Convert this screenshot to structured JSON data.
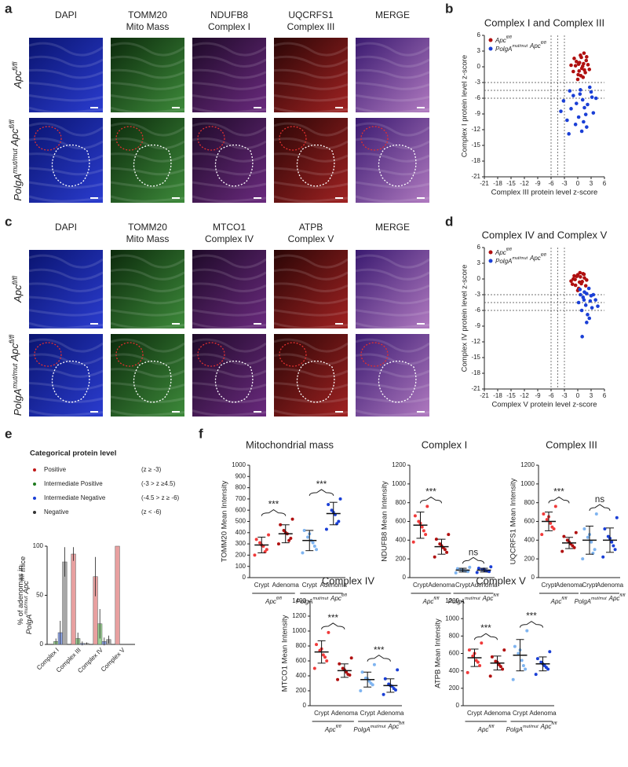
{
  "panel_a": {
    "letter": "a",
    "columns": [
      [
        "DAPI"
      ],
      [
        "TOMM20",
        "Mito Mass"
      ],
      [
        "NDUFB8",
        "Complex I"
      ],
      [
        "UQCRFS1",
        "Complex III"
      ],
      [
        "MERGE"
      ]
    ],
    "rows": [
      [
        {
          "text": "Apc",
          "sup": "fl/fl"
        }
      ],
      [
        {
          "text": "PolgA",
          "sup": "mut/mut"
        },
        {
          "text": "Apc",
          "sup": "fl/fl"
        }
      ]
    ]
  },
  "panel_c": {
    "letter": "c",
    "columns": [
      [
        "DAPI"
      ],
      [
        "TOMM20",
        "Mito Mass"
      ],
      [
        "MTCO1",
        "Complex IV"
      ],
      [
        "ATPB",
        "Complex V"
      ],
      [
        "MERGE"
      ]
    ],
    "rows": [
      [
        {
          "text": "Apc",
          "sup": "fl/fl"
        }
      ],
      [
        {
          "text": "PolgA",
          "sup": "mut/mut"
        },
        {
          "text": "Apc",
          "sup": "fl/fl"
        }
      ]
    ]
  },
  "panel_f": {
    "letter": "f"
  },
  "chart_data": [
    {
      "type": "scatter",
      "letter": "b",
      "title": "Complex I and Complex III",
      "xlabel": "Complex III protein level z-score",
      "ylabel": "Complex I protein level z-score",
      "xlim": [
        -21,
        6
      ],
      "xticks": [
        -21,
        -18,
        -15,
        -12,
        -9,
        -6,
        -3,
        0,
        3,
        6
      ],
      "ylim": [
        -21,
        6
      ],
      "yticks": [
        -21,
        -18,
        -15,
        -12,
        -9,
        -6,
        -3,
        0,
        3,
        6
      ],
      "thresholds": [
        -3,
        -4.5,
        -6
      ],
      "series": [
        {
          "name": [
            {
              "text": "Apc",
              "sup": "fl/fl"
            }
          ],
          "color": "#b01010",
          "x": [
            0.2,
            0.8,
            1.5,
            -0.5,
            0.1,
            1.9,
            2.3,
            -1,
            0.6,
            1.2,
            -0.3,
            0.9,
            1.7,
            0.4,
            -0.8,
            2.6,
            1.1,
            0.0,
            1.4,
            -1.5,
            0.7,
            2.0,
            0.3,
            1.3
          ],
          "values": [
            0.5,
            1.8,
            -0.6,
            0.2,
            -1.5,
            1.2,
            0.4,
            -0.9,
            2.2,
            -2.0,
            1.0,
            -0.3,
            -1.1,
            0.8,
            1.6,
            -0.5,
            0.1,
            -2.4,
            2.6,
            0.3,
            -1.7,
            1.9,
            -0.8,
            0.6
          ]
        },
        {
          "name": [
            {
              "text": "PolgA",
              "sup": "mut/mut"
            },
            {
              "text": "Apc",
              "sup": "fl/fl"
            }
          ],
          "color": "#1a3fd6",
          "x": [
            -3.2,
            -1.5,
            0.5,
            1.8,
            3.0,
            -0.5,
            2.2,
            -2.4,
            4.1,
            0.9,
            -1.0,
            1.5,
            2.7,
            -3.8,
            0.2,
            3.5,
            -1.8,
            1.1,
            2.0,
            -0.3,
            0.6,
            -2.0,
            1.3,
            3.2
          ],
          "values": [
            -6.5,
            -8.0,
            -5.2,
            -9.1,
            -4.8,
            -11.0,
            -7.2,
            -10.2,
            -6.0,
            -12.3,
            -5.5,
            -7.8,
            -3.9,
            -8.5,
            -9.6,
            -8.8,
            -4.6,
            -6.3,
            -11.5,
            -7.0,
            -4.4,
            -12.8,
            -10.5,
            -5.8
          ]
        }
      ]
    },
    {
      "type": "scatter",
      "letter": "d",
      "title": "Complex IV and Complex V",
      "xlabel": "Complex V protein level z-score",
      "ylabel": "Complex IV protein level z-score",
      "xlim": [
        -21,
        6
      ],
      "xticks": [
        -21,
        -18,
        -15,
        -12,
        -9,
        -6,
        -3,
        0,
        3,
        6
      ],
      "ylim": [
        -21,
        6
      ],
      "yticks": [
        -21,
        -18,
        -15,
        -12,
        -9,
        -6,
        -3,
        0,
        3,
        6
      ],
      "thresholds": [
        -3,
        -4.5,
        -6
      ],
      "series": [
        {
          "name": [
            {
              "text": "Apc",
              "sup": "fl/fl"
            }
          ],
          "color": "#b01010",
          "x": [
            -1.0,
            0.0,
            1.0,
            -0.5,
            0.5,
            1.5,
            -1.5,
            0.2,
            0.8,
            -0.2,
            1.2,
            2.0,
            -0.8,
            0.4,
            1.8,
            -1.2,
            0.6,
            0.0,
            1.4,
            -0.6
          ],
          "values": [
            0.0,
            0.8,
            -0.5,
            -1.2,
            1.2,
            0.2,
            -0.4,
            -1.8,
            -0.9,
            0.5,
            1.0,
            -0.2,
            0.6,
            -0.6,
            -1.3,
            -1.0,
            0.4,
            -2.2,
            0.9,
            -0.1
          ]
        },
        {
          "name": [
            {
              "text": "PolgA",
              "sup": "mut/mut"
            },
            {
              "text": "Apc",
              "sup": "fl/fl"
            }
          ],
          "color": "#1a3fd6",
          "x": [
            0.5,
            1.2,
            2.0,
            2.8,
            3.5,
            1.8,
            0.9,
            2.5,
            3.2,
            4.0,
            1.5,
            2.2,
            0.2,
            3.0,
            1.0,
            2.6,
            1.4,
            4.5,
            0.6,
            2.0
          ],
          "values": [
            -2.0,
            -3.5,
            -2.8,
            -4.2,
            -3.0,
            -5.0,
            -6.0,
            -1.8,
            -5.5,
            -4.0,
            -2.5,
            -6.8,
            -4.5,
            -3.2,
            -11.0,
            -7.5,
            -4.0,
            -5.2,
            -3.0,
            -8.3
          ]
        }
      ]
    },
    {
      "type": "bar",
      "letter": "e",
      "legend_title": "Categorical protein level",
      "ylabel": [
        [
          {
            "text": "% of adenomas in"
          }
        ],
        [
          {
            "text": "PolgA",
            "sup": "mut/mut"
          },
          {
            "text": "Apc",
            "sup": "fl/fl"
          },
          {
            "text": "mice"
          }
        ]
      ],
      "categories": [
        "Complex I",
        "Complex III",
        "Complex IV",
        "Complex V"
      ],
      "ylim": [
        0,
        100
      ],
      "yticks": [
        0,
        50,
        100
      ],
      "series": [
        {
          "name": "Positive",
          "condition": "(z ≥ -3)",
          "color": "#e8a0a0",
          "marker": "#c01818",
          "values": [
            0,
            92,
            69,
            100
          ],
          "errors": [
            0,
            7,
            20,
            0
          ]
        },
        {
          "name": "Intermediate Positive",
          "condition": "(-3 > z ≥4.5)",
          "color": "#9ccf94",
          "marker": "#1e7a1e",
          "values": [
            3,
            6,
            21,
            0
          ],
          "errors": [
            3,
            6,
            15,
            0
          ]
        },
        {
          "name": "Intermediate Negative",
          "condition": "(-4.5 > z ≥ -6)",
          "color": "#8fa6e8",
          "marker": "#1a3fd6",
          "values": [
            12,
            1,
            3,
            0
          ],
          "errors": [
            12,
            2,
            4,
            0
          ]
        },
        {
          "name": "Negative",
          "condition": "(z < -6)",
          "color": "#a8a8a8",
          "marker": "#333333",
          "values": [
            84,
            1,
            5,
            0
          ],
          "errors": [
            15,
            1,
            4,
            0
          ]
        }
      ]
    },
    {
      "type": "dot",
      "title": "Mitochondrial mass",
      "ylabel": "TOMM20 Mean Intensity",
      "ylim": [
        0,
        1000
      ],
      "yticks": [
        0,
        100,
        200,
        300,
        400,
        500,
        600,
        700,
        800,
        900,
        1000
      ],
      "categories": [
        "Crypt",
        "Adenoma",
        "Crypt",
        "Adenoma"
      ],
      "colors": [
        "#f03a3a",
        "#b01010",
        "#7fb4f0",
        "#1a3fd6"
      ],
      "groups": [
        [
          {
            "text": "Apc",
            "sup": "fl/fl"
          }
        ],
        [
          {
            "text": "PolgA",
            "sup": "mut/mut"
          },
          {
            "text": "Apc",
            "sup": "fl/fl"
          }
        ]
      ],
      "values": [
        290,
        390,
        330,
        570
      ],
      "errors": [
        70,
        80,
        90,
        100
      ],
      "significance": [
        "***",
        "***"
      ],
      "points": [
        [
          200,
          250,
          280,
          310,
          340,
          380,
          230,
          290
        ],
        [
          300,
          350,
          390,
          420,
          470,
          520,
          330,
          400
        ],
        [
          220,
          280,
          330,
          360,
          420,
          250,
          310,
          390
        ],
        [
          430,
          500,
          560,
          600,
          650,
          700,
          480,
          580
        ]
      ]
    },
    {
      "type": "dot",
      "title": "Complex I",
      "ylabel": "NDUFB8 Mean Intensity",
      "ylim": [
        0,
        1200
      ],
      "yticks": [
        0,
        200,
        400,
        600,
        800,
        1000,
        1200
      ],
      "categories": [
        "Crypt",
        "Adenoma",
        "Crypt",
        "Adenoma"
      ],
      "colors": [
        "#f03a3a",
        "#b01010",
        "#7fb4f0",
        "#1a3fd6"
      ],
      "groups": [
        [
          {
            "text": "Apc",
            "sup": "fl/fl"
          }
        ],
        [
          {
            "text": "PolgA",
            "sup": "mut/mut"
          },
          {
            "text": "Apc",
            "sup": "fl/fl"
          }
        ]
      ],
      "values": [
        560,
        330,
        80,
        80
      ],
      "errors": [
        140,
        80,
        20,
        20
      ],
      "significance": [
        "***",
        "ns"
      ],
      "points": [
        [
          380,
          460,
          540,
          600,
          660,
          760,
          500,
          580
        ],
        [
          220,
          270,
          320,
          360,
          410,
          460,
          300,
          340
        ],
        [
          50,
          65,
          75,
          85,
          95,
          110,
          70,
          80
        ],
        [
          55,
          65,
          75,
          85,
          100,
          115,
          70,
          90
        ]
      ]
    },
    {
      "type": "dot",
      "title": "Complex III",
      "ylabel": "UQCRFS1 Mean Intensity",
      "ylim": [
        0,
        1200
      ],
      "yticks": [
        0,
        200,
        400,
        600,
        800,
        1000,
        1200
      ],
      "categories": [
        "Crypt",
        "Adenoma",
        "Crypt",
        "Adenoma"
      ],
      "colors": [
        "#f03a3a",
        "#b01010",
        "#7fb4f0",
        "#1a3fd6"
      ],
      "groups": [
        [
          {
            "text": "Apc",
            "sup": "fl/fl"
          }
        ],
        [
          {
            "text": "PolgA",
            "sup": "mut/mut"
          },
          {
            "text": "Apc",
            "sup": "fl/fl"
          }
        ]
      ],
      "values": [
        600,
        370,
        400,
        400
      ],
      "errors": [
        100,
        60,
        150,
        130
      ],
      "significance": [
        "***",
        "ns"
      ],
      "points": [
        [
          460,
          520,
          580,
          620,
          680,
          760,
          540,
          650
        ],
        [
          280,
          320,
          360,
          400,
          440,
          480,
          340,
          380
        ],
        [
          200,
          300,
          380,
          430,
          520,
          680,
          260,
          460
        ],
        [
          220,
          300,
          380,
          440,
          520,
          640,
          340,
          420
        ]
      ]
    },
    {
      "type": "dot",
      "title": "Complex IV",
      "ylabel": "MTCO1 Mean Intensity",
      "ylim": [
        0,
        1400
      ],
      "yticks": [
        0,
        200,
        400,
        600,
        800,
        1000,
        1200,
        1400
      ],
      "categories": [
        "Crypt",
        "Adenoma",
        "Crypt",
        "Adenoma"
      ],
      "colors": [
        "#f03a3a",
        "#b01010",
        "#7fb4f0",
        "#1a3fd6"
      ],
      "groups": [
        [
          {
            "text": "Apc",
            "sup": "fl/fl"
          }
        ],
        [
          {
            "text": "PolgA",
            "sup": "mut/mut"
          },
          {
            "text": "Apc",
            "sup": "fl/fl"
          }
        ]
      ],
      "values": [
        720,
        470,
        350,
        270
      ],
      "errors": [
        150,
        90,
        100,
        90
      ],
      "significance": [
        "***",
        "***"
      ],
      "points": [
        [
          500,
          600,
          680,
          740,
          820,
          980,
          650,
          760
        ],
        [
          350,
          410,
          450,
          500,
          560,
          640,
          420,
          480
        ],
        [
          200,
          280,
          330,
          370,
          450,
          550,
          300,
          360
        ],
        [
          150,
          210,
          260,
          290,
          360,
          480,
          230,
          270
        ]
      ]
    },
    {
      "type": "dot",
      "title": "Complex V",
      "ylabel": "ATPB Mean Intensity",
      "ylim": [
        0,
        1200
      ],
      "yticks": [
        0,
        200,
        400,
        600,
        800,
        1000,
        1200
      ],
      "categories": [
        "Crypt",
        "Adenoma",
        "Crypt",
        "Adenoma"
      ],
      "colors": [
        "#f03a3a",
        "#b01010",
        "#7fb4f0",
        "#1a3fd6"
      ],
      "groups": [
        [
          {
            "text": "Apc",
            "sup": "fl/fl"
          }
        ],
        [
          {
            "text": "PolgA",
            "sup": "mut/mut"
          },
          {
            "text": "Apc",
            "sup": "fl/fl"
          }
        ]
      ],
      "values": [
        550,
        490,
        580,
        480
      ],
      "errors": [
        100,
        80,
        180,
        80
      ],
      "significance": [
        "***",
        "***"
      ],
      "points": [
        [
          380,
          460,
          520,
          570,
          640,
          720,
          500,
          600
        ],
        [
          340,
          420,
          470,
          510,
          560,
          640,
          450,
          500
        ],
        [
          300,
          420,
          520,
          600,
          680,
          860,
          460,
          640
        ],
        [
          360,
          420,
          460,
          500,
          540,
          620,
          440,
          480
        ]
      ]
    }
  ]
}
